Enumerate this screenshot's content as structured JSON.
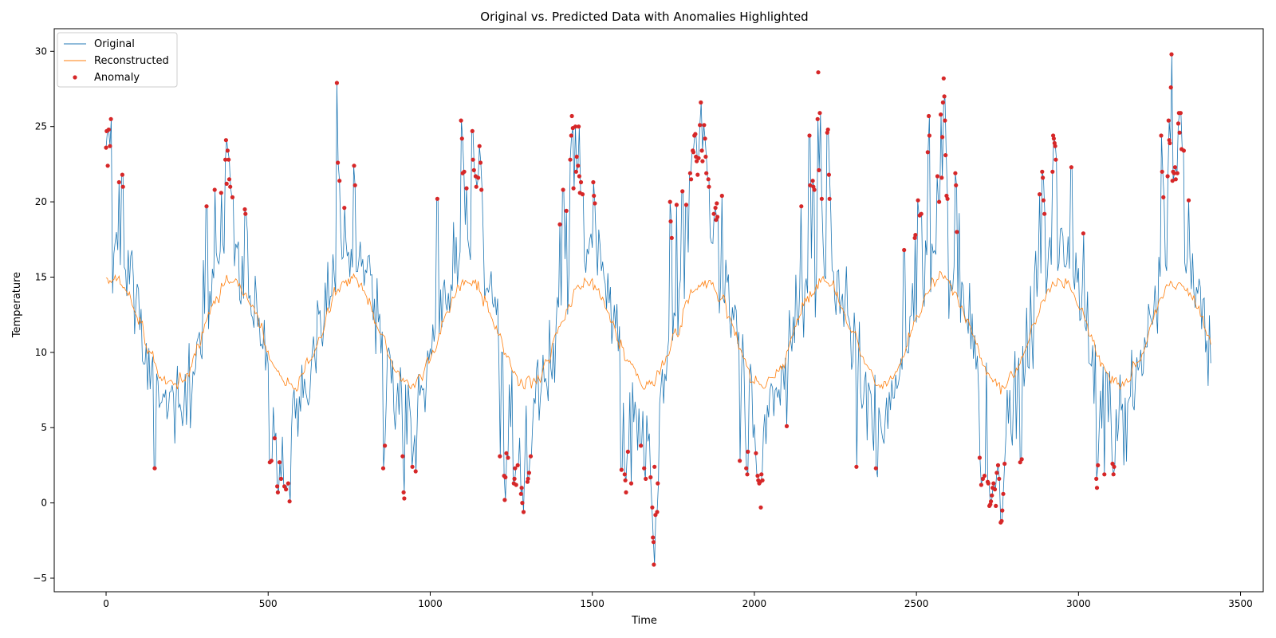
{
  "chart_data": {
    "type": "line",
    "title": "Original vs. Predicted Data with Anomalies Highlighted",
    "xlabel": "Time",
    "ylabel": "Temperature",
    "xlim": [
      -160,
      3570
    ],
    "ylim": [
      -5.9,
      31.5
    ],
    "xticks": [
      0,
      500,
      1000,
      1500,
      2000,
      2500,
      3000,
      3500
    ],
    "yticks": [
      -5,
      0,
      5,
      10,
      15,
      20,
      25,
      30
    ],
    "grid": false,
    "legend_position": "top-left",
    "colors": {
      "original": "#1f77b4",
      "reconstructed": "#ff7f0e",
      "anomaly": "#d62728"
    },
    "series": [
      {
        "name": "Original",
        "role": "original",
        "style": "line",
        "x_start": 0,
        "x_step": 4,
        "n_points": 853,
        "period": 365,
        "mean": 11.3,
        "amplitude": 5.6,
        "phase_peak": 20,
        "note_values_sampled": true
      },
      {
        "name": "Reconstructed",
        "role": "reconstructed",
        "style": "line"
      },
      {
        "name": "Anomaly",
        "role": "anomaly",
        "style": "scatter",
        "points": [
          [
            0,
            23.6
          ],
          [
            2,
            24.7
          ],
          [
            5,
            22.4
          ],
          [
            8,
            24.8
          ],
          [
            12,
            23.7
          ],
          [
            15,
            25.5
          ],
          [
            40,
            21.3
          ],
          [
            50,
            21.8
          ],
          [
            52,
            21.0
          ],
          [
            150,
            2.3
          ],
          [
            310,
            19.7
          ],
          [
            335,
            20.8
          ],
          [
            355,
            20.6
          ],
          [
            368,
            22.8
          ],
          [
            370,
            24.1
          ],
          [
            372,
            21.2
          ],
          [
            375,
            23.4
          ],
          [
            378,
            22.8
          ],
          [
            380,
            21.5
          ],
          [
            383,
            21.0
          ],
          [
            390,
            20.3
          ],
          [
            428,
            19.5
          ],
          [
            430,
            19.2
          ],
          [
            505,
            2.7
          ],
          [
            510,
            2.8
          ],
          [
            520,
            4.3
          ],
          [
            528,
            1.1
          ],
          [
            530,
            0.7
          ],
          [
            535,
            2.7
          ],
          [
            540,
            1.6
          ],
          [
            550,
            1.1
          ],
          [
            555,
            0.9
          ],
          [
            562,
            1.3
          ],
          [
            566,
            0.1
          ],
          [
            712,
            27.9
          ],
          [
            715,
            22.6
          ],
          [
            720,
            21.4
          ],
          [
            735,
            19.6
          ],
          [
            765,
            22.4
          ],
          [
            768,
            21.1
          ],
          [
            855,
            2.3
          ],
          [
            860,
            3.8
          ],
          [
            915,
            3.1
          ],
          [
            918,
            0.7
          ],
          [
            920,
            0.3
          ],
          [
            945,
            2.4
          ],
          [
            955,
            2.1
          ],
          [
            1022,
            20.2
          ],
          [
            1095,
            25.4
          ],
          [
            1098,
            24.2
          ],
          [
            1100,
            21.9
          ],
          [
            1105,
            22.0
          ],
          [
            1112,
            20.9
          ],
          [
            1130,
            24.7
          ],
          [
            1132,
            22.8
          ],
          [
            1135,
            22.1
          ],
          [
            1140,
            21.7
          ],
          [
            1142,
            21.0
          ],
          [
            1148,
            21.6
          ],
          [
            1152,
            23.7
          ],
          [
            1155,
            22.6
          ],
          [
            1158,
            20.8
          ],
          [
            1215,
            3.1
          ],
          [
            1228,
            1.8
          ],
          [
            1230,
            0.2
          ],
          [
            1232,
            1.7
          ],
          [
            1235,
            3.3
          ],
          [
            1240,
            3.0
          ],
          [
            1258,
            1.3
          ],
          [
            1260,
            1.6
          ],
          [
            1262,
            2.3
          ],
          [
            1265,
            1.2
          ],
          [
            1270,
            2.5
          ],
          [
            1280,
            0.6
          ],
          [
            1282,
            1.0
          ],
          [
            1284,
            0.0
          ],
          [
            1288,
            -0.6
          ],
          [
            1300,
            1.4
          ],
          [
            1302,
            1.6
          ],
          [
            1305,
            2.0
          ],
          [
            1310,
            3.1
          ],
          [
            1400,
            18.5
          ],
          [
            1410,
            20.8
          ],
          [
            1420,
            19.4
          ],
          [
            1432,
            22.8
          ],
          [
            1435,
            24.4
          ],
          [
            1437,
            25.7
          ],
          [
            1440,
            24.9
          ],
          [
            1442,
            20.9
          ],
          [
            1448,
            25.0
          ],
          [
            1450,
            22.0
          ],
          [
            1452,
            23.0
          ],
          [
            1456,
            22.4
          ],
          [
            1458,
            25.0
          ],
          [
            1460,
            21.7
          ],
          [
            1462,
            20.6
          ],
          [
            1465,
            21.3
          ],
          [
            1470,
            20.5
          ],
          [
            1503,
            21.3
          ],
          [
            1505,
            20.4
          ],
          [
            1508,
            19.9
          ],
          [
            1590,
            2.2
          ],
          [
            1600,
            1.9
          ],
          [
            1602,
            1.5
          ],
          [
            1604,
            0.7
          ],
          [
            1610,
            3.4
          ],
          [
            1620,
            1.3
          ],
          [
            1650,
            3.8
          ],
          [
            1660,
            2.3
          ],
          [
            1665,
            1.6
          ],
          [
            1680,
            1.7
          ],
          [
            1685,
            -0.3
          ],
          [
            1687,
            -2.3
          ],
          [
            1689,
            -2.6
          ],
          [
            1690,
            -4.1
          ],
          [
            1692,
            2.4
          ],
          [
            1695,
            -0.8
          ],
          [
            1700,
            -0.6
          ],
          [
            1702,
            1.3
          ],
          [
            1740,
            20.0
          ],
          [
            1742,
            18.7
          ],
          [
            1745,
            17.6
          ],
          [
            1760,
            19.8
          ],
          [
            1778,
            20.7
          ],
          [
            1790,
            19.8
          ],
          [
            1802,
            21.9
          ],
          [
            1805,
            21.5
          ],
          [
            1810,
            23.4
          ],
          [
            1812,
            23.3
          ],
          [
            1815,
            24.4
          ],
          [
            1818,
            24.5
          ],
          [
            1820,
            23.0
          ],
          [
            1822,
            22.7
          ],
          [
            1825,
            21.8
          ],
          [
            1828,
            22.9
          ],
          [
            1832,
            25.1
          ],
          [
            1835,
            26.6
          ],
          [
            1838,
            23.4
          ],
          [
            1840,
            22.7
          ],
          [
            1845,
            25.1
          ],
          [
            1848,
            24.2
          ],
          [
            1850,
            23.0
          ],
          [
            1852,
            21.9
          ],
          [
            1858,
            21.5
          ],
          [
            1860,
            21.0
          ],
          [
            1875,
            19.2
          ],
          [
            1880,
            19.6
          ],
          [
            1882,
            18.8
          ],
          [
            1884,
            19.9
          ],
          [
            1886,
            19.0
          ],
          [
            1900,
            20.4
          ],
          [
            1955,
            2.8
          ],
          [
            1975,
            2.3
          ],
          [
            1978,
            1.9
          ],
          [
            1980,
            3.4
          ],
          [
            2005,
            3.3
          ],
          [
            2010,
            1.8
          ],
          [
            2012,
            1.5
          ],
          [
            2015,
            1.3
          ],
          [
            2018,
            1.4
          ],
          [
            2020,
            -0.3
          ],
          [
            2022,
            1.9
          ],
          [
            2025,
            1.5
          ],
          [
            2100,
            5.1
          ],
          [
            2145,
            19.7
          ],
          [
            2170,
            24.4
          ],
          [
            2172,
            21.1
          ],
          [
            2180,
            21.4
          ],
          [
            2182,
            21.0
          ],
          [
            2185,
            20.8
          ],
          [
            2195,
            25.5
          ],
          [
            2197,
            28.6
          ],
          [
            2199,
            22.1
          ],
          [
            2202,
            25.9
          ],
          [
            2208,
            20.2
          ],
          [
            2225,
            24.6
          ],
          [
            2227,
            24.8
          ],
          [
            2230,
            21.8
          ],
          [
            2232,
            20.2
          ],
          [
            2315,
            2.4
          ],
          [
            2375,
            2.3
          ],
          [
            2462,
            16.8
          ],
          [
            2495,
            17.6
          ],
          [
            2497,
            17.8
          ],
          [
            2505,
            20.1
          ],
          [
            2510,
            19.1
          ],
          [
            2515,
            19.2
          ],
          [
            2535,
            23.3
          ],
          [
            2538,
            25.7
          ],
          [
            2540,
            24.4
          ],
          [
            2565,
            21.7
          ],
          [
            2570,
            20.0
          ],
          [
            2575,
            25.8
          ],
          [
            2578,
            21.6
          ],
          [
            2580,
            24.3
          ],
          [
            2582,
            26.6
          ],
          [
            2584,
            28.2
          ],
          [
            2586,
            27.0
          ],
          [
            2588,
            25.4
          ],
          [
            2590,
            23.1
          ],
          [
            2593,
            20.4
          ],
          [
            2596,
            20.2
          ],
          [
            2620,
            21.9
          ],
          [
            2622,
            21.1
          ],
          [
            2625,
            18.0
          ],
          [
            2695,
            3.0
          ],
          [
            2700,
            1.2
          ],
          [
            2705,
            1.6
          ],
          [
            2710,
            1.8
          ],
          [
            2720,
            1.4
          ],
          [
            2722,
            1.3
          ],
          [
            2725,
            -0.2
          ],
          [
            2728,
            -0.1
          ],
          [
            2730,
            0.1
          ],
          [
            2733,
            0.5
          ],
          [
            2735,
            1.0
          ],
          [
            2738,
            1.3
          ],
          [
            2742,
            0.9
          ],
          [
            2745,
            -0.2
          ],
          [
            2748,
            2.0
          ],
          [
            2752,
            2.5
          ],
          [
            2755,
            1.6
          ],
          [
            2760,
            -1.3
          ],
          [
            2763,
            -1.2
          ],
          [
            2765,
            -0.5
          ],
          [
            2768,
            0.6
          ],
          [
            2772,
            2.6
          ],
          [
            2820,
            2.7
          ],
          [
            2825,
            2.9
          ],
          [
            2880,
            20.5
          ],
          [
            2888,
            22.0
          ],
          [
            2890,
            21.6
          ],
          [
            2892,
            20.1
          ],
          [
            2895,
            19.2
          ],
          [
            2920,
            22.0
          ],
          [
            2922,
            24.4
          ],
          [
            2924,
            24.2
          ],
          [
            2926,
            23.9
          ],
          [
            2928,
            23.7
          ],
          [
            2930,
            22.8
          ],
          [
            2978,
            22.3
          ],
          [
            3015,
            17.9
          ],
          [
            3055,
            1.6
          ],
          [
            3057,
            1.0
          ],
          [
            3060,
            2.5
          ],
          [
            3080,
            1.9
          ],
          [
            3105,
            2.6
          ],
          [
            3108,
            1.9
          ],
          [
            3110,
            2.4
          ],
          [
            3255,
            24.4
          ],
          [
            3258,
            22.0
          ],
          [
            3262,
            20.3
          ],
          [
            3275,
            21.7
          ],
          [
            3278,
            25.4
          ],
          [
            3280,
            24.1
          ],
          [
            3282,
            23.9
          ],
          [
            3285,
            27.6
          ],
          [
            3287,
            29.8
          ],
          [
            3290,
            21.4
          ],
          [
            3292,
            22.0
          ],
          [
            3295,
            21.9
          ],
          [
            3298,
            22.3
          ],
          [
            3300,
            21.5
          ],
          [
            3305,
            21.9
          ],
          [
            3308,
            25.2
          ],
          [
            3310,
            25.9
          ],
          [
            3312,
            24.6
          ],
          [
            3315,
            25.9
          ],
          [
            3318,
            23.5
          ],
          [
            3325,
            23.4
          ],
          [
            3340,
            20.1
          ]
        ]
      }
    ]
  }
}
